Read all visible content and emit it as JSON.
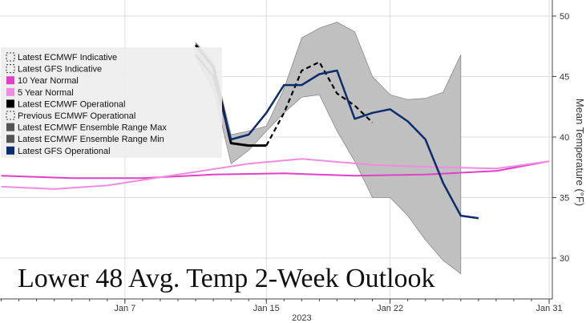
{
  "chart_data": {
    "type": "line",
    "title": "Lower 48 Avg. Temp 2-Week Outlook",
    "xlabel": "2023",
    "ylabel": "Mean Temperature (°F)",
    "x_ticks": [
      "Jan 7",
      "Jan 15",
      "Jan 22",
      "Jan 31"
    ],
    "y_ticks": [
      30,
      35,
      40,
      45,
      50
    ],
    "ylim": [
      27,
      51
    ],
    "grid": true,
    "legend_position": "left",
    "series": [
      {
        "name": "Latest ECMWF Indicative",
        "color": "#333333",
        "style": "dashed",
        "x": [],
        "y": []
      },
      {
        "name": "Latest GFS Indicative",
        "color": "#333333",
        "style": "dashed",
        "x": [],
        "y": []
      },
      {
        "name": "10 Year Normal",
        "color": "#e040c8",
        "x": [
          "2022-12-31",
          "2023-01-04",
          "2023-01-08",
          "2023-01-12",
          "2023-01-16",
          "2023-01-20",
          "2023-01-24",
          "2023-01-28",
          "2023-01-31"
        ],
        "y": [
          36.8,
          36.6,
          36.6,
          36.9,
          37.0,
          36.8,
          36.9,
          37.2,
          38.0
        ]
      },
      {
        "name": "5 Year Normal",
        "color": "#f08ce0",
        "x": [
          "2022-12-31",
          "2023-01-03",
          "2023-01-06",
          "2023-01-10",
          "2023-01-14",
          "2023-01-17",
          "2023-01-21",
          "2023-01-25",
          "2023-01-28",
          "2023-01-31"
        ],
        "y": [
          35.9,
          35.7,
          36.0,
          36.9,
          37.8,
          38.2,
          37.7,
          37.5,
          37.4,
          38.0
        ]
      },
      {
        "name": "Latest ECMWF Operational",
        "color": "#000000",
        "x": [
          "2023-01-11",
          "2023-01-12",
          "2023-01-13",
          "2023-01-14",
          "2023-01-15"
        ],
        "y": [
          47.6,
          45.8,
          39.5,
          39.3,
          39.3
        ]
      },
      {
        "name": "Previous ECMWF Operational",
        "color": "#000000",
        "style": "dashed",
        "x": [
          "2023-01-15",
          "2023-01-16",
          "2023-01-17",
          "2023-01-18",
          "2023-01-19",
          "2023-01-20",
          "2023-01-21"
        ],
        "y": [
          39.3,
          42.0,
          45.5,
          46.2,
          43.6,
          42.6,
          41.2
        ]
      },
      {
        "name": "Latest ECMWF Ensemble Range Max",
        "color": "#555555",
        "x": [
          "2023-01-11",
          "2023-01-12",
          "2023-01-13",
          "2023-01-14",
          "2023-01-15",
          "2023-01-16",
          "2023-01-17",
          "2023-01-18",
          "2023-01-19",
          "2023-01-20",
          "2023-01-21",
          "2023-01-22",
          "2023-01-23",
          "2023-01-24",
          "2023-01-25",
          "2023-01-26"
        ],
        "y": [
          47.8,
          46.3,
          40.2,
          40.5,
          40.9,
          44.0,
          48.2,
          49.0,
          49.5,
          48.7,
          45.0,
          43.5,
          43.1,
          43.2,
          43.7,
          46.8
        ]
      },
      {
        "name": "Latest ECMWF Ensemble Range Min",
        "color": "#555555",
        "x": [
          "2023-01-11",
          "2023-01-12",
          "2023-01-13",
          "2023-01-14",
          "2023-01-15",
          "2023-01-16",
          "2023-01-17",
          "2023-01-18",
          "2023-01-19",
          "2023-01-20",
          "2023-01-21",
          "2023-01-22",
          "2023-01-23",
          "2023-01-24",
          "2023-01-25",
          "2023-01-26"
        ],
        "y": [
          46.5,
          44.0,
          37.8,
          38.9,
          40.5,
          42.0,
          43.3,
          43.5,
          40.5,
          38.0,
          35.0,
          35.0,
          33.5,
          31.5,
          29.8,
          28.7
        ]
      },
      {
        "name": "Latest GFS Operational",
        "color": "#0d2c6c",
        "x": [
          "2023-01-11",
          "2023-01-12",
          "2023-01-13",
          "2023-01-14",
          "2023-01-15",
          "2023-01-16",
          "2023-01-17",
          "2023-01-18",
          "2023-01-19",
          "2023-01-20",
          "2023-01-21",
          "2023-01-22",
          "2023-01-23",
          "2023-01-24",
          "2023-01-25",
          "2023-01-26",
          "2023-01-27"
        ],
        "y": [
          46.8,
          45.0,
          39.8,
          40.2,
          42.0,
          44.3,
          44.3,
          45.2,
          45.5,
          41.5,
          42.0,
          42.3,
          41.3,
          39.8,
          36.2,
          33.5,
          33.3
        ]
      }
    ]
  }
}
